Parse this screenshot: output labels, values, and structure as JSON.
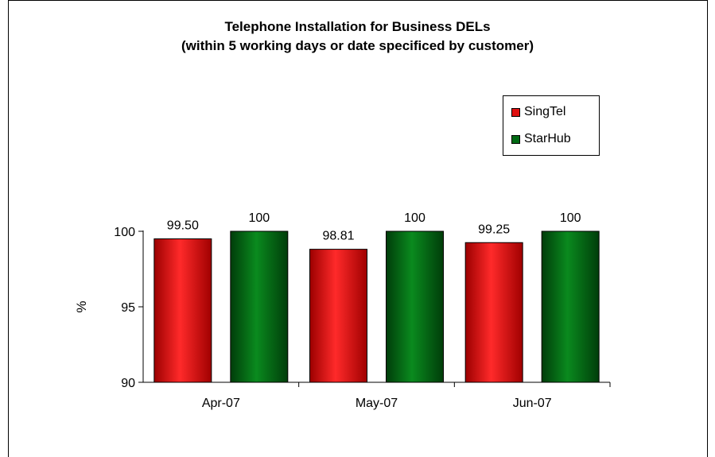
{
  "chart_data": {
    "type": "bar",
    "title": "Telephone Installation for Business DELs",
    "subtitle": "(within 5 working days or date specificed by customer)",
    "ylabel": "%",
    "xlabel": "",
    "categories": [
      "Apr-07",
      "May-07",
      "Jun-07"
    ],
    "ylim": [
      90,
      100
    ],
    "yticks": [
      "90",
      "95",
      "100"
    ],
    "series": [
      {
        "name": "SingTel",
        "color": "#e01010",
        "values": [
          99.5,
          98.81,
          99.25
        ],
        "labels": [
          "99.50",
          "98.81",
          "99.25"
        ]
      },
      {
        "name": "StarHub",
        "color": "#006a14",
        "values": [
          100,
          100,
          100
        ],
        "labels": [
          "100",
          "100",
          "100"
        ]
      }
    ],
    "legend_position": "top-right",
    "grid": false
  }
}
